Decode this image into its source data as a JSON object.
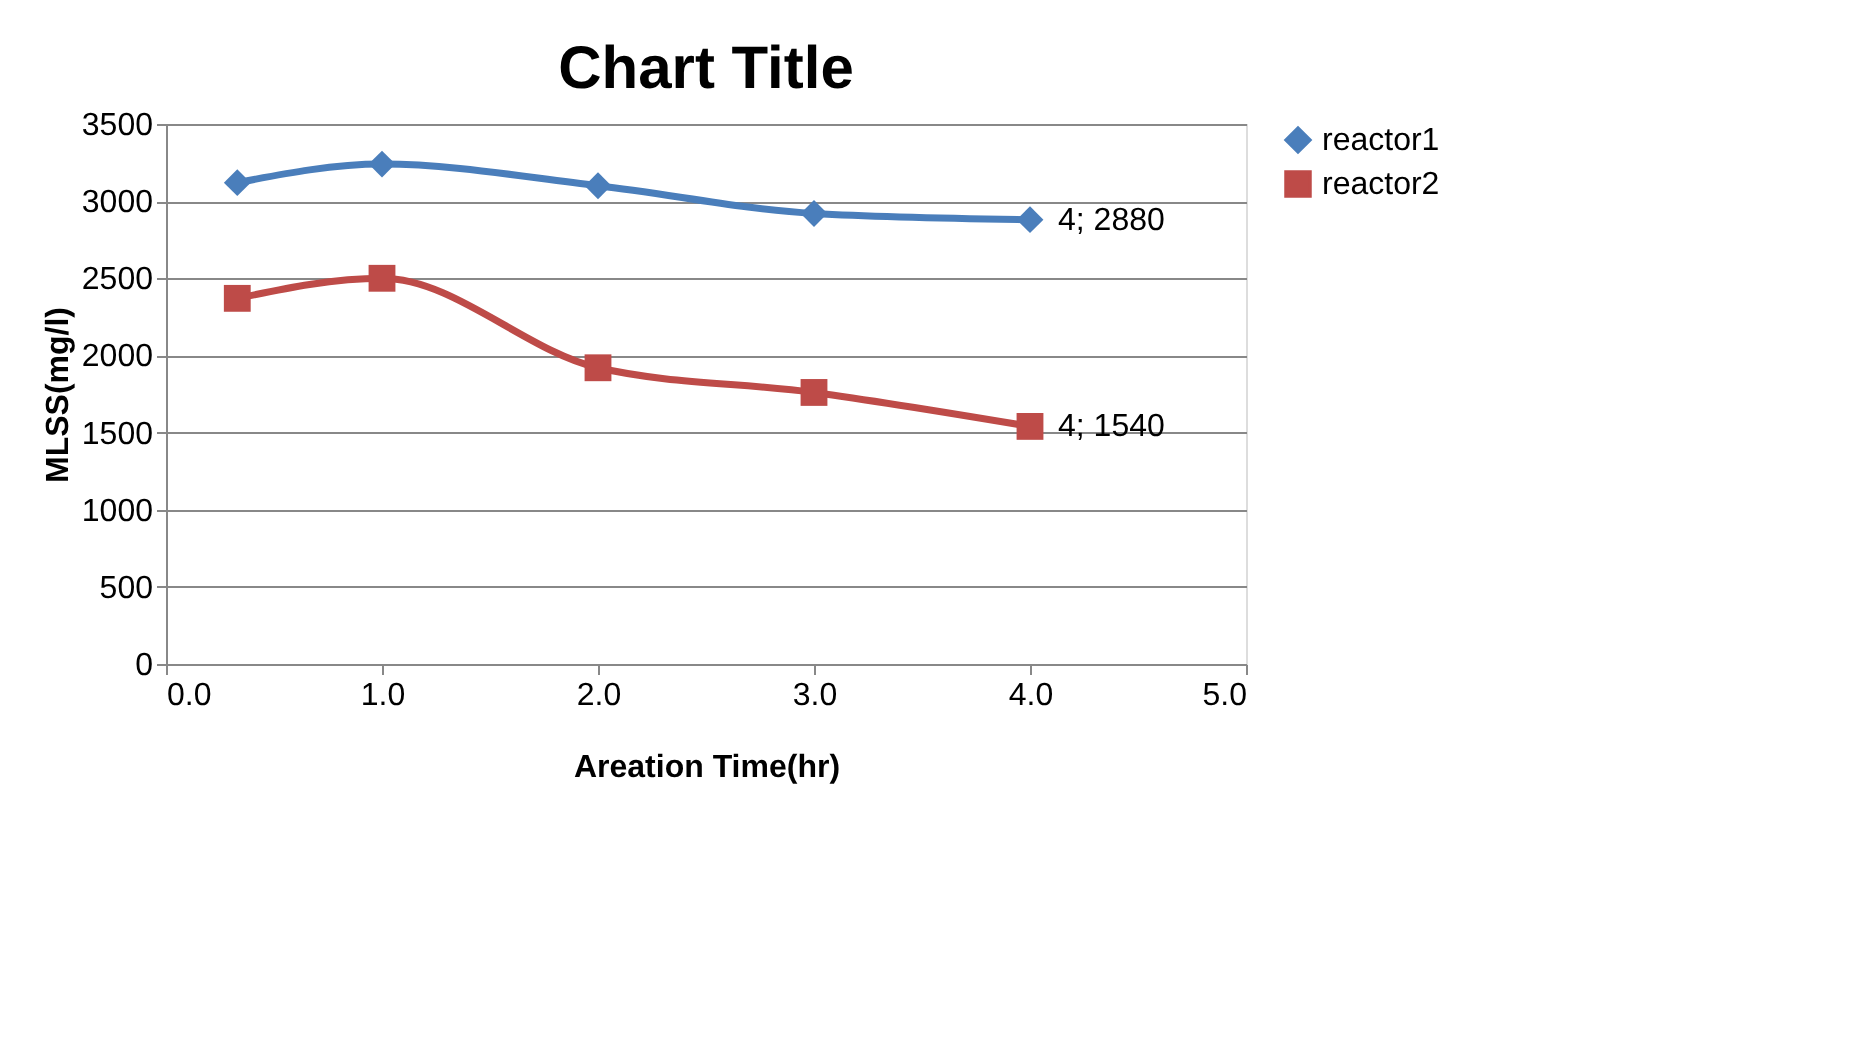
{
  "chart_data": {
    "type": "line",
    "title": "Chart Title",
    "xlabel": "Areation Time(hr)",
    "ylabel": "MLSS(mg/l)",
    "series": [
      {
        "name": "reactor1",
        "color": "#4a7ebb",
        "marker": "diamond",
        "x": [
          0.33,
          1,
          2,
          3,
          4
        ],
        "values": [
          3120,
          3240,
          3100,
          2920,
          2880
        ],
        "value_labels": [
          null,
          null,
          null,
          null,
          "4; 2880"
        ]
      },
      {
        "name": "reactor2",
        "color": "#be4b48",
        "marker": "square",
        "x": [
          0.33,
          1,
          2,
          3,
          4
        ],
        "values": [
          2370,
          2500,
          1920,
          1760,
          1540
        ],
        "value_labels": [
          null,
          null,
          null,
          null,
          "4; 1540"
        ]
      }
    ],
    "xlim": [
      0,
      5
    ],
    "xticks": [
      {
        "value": 0,
        "label": "0.0"
      },
      {
        "value": 1,
        "label": "1.0"
      },
      {
        "value": 2,
        "label": "2.0"
      },
      {
        "value": 3,
        "label": "3.0"
      },
      {
        "value": 4,
        "label": "4.0"
      },
      {
        "value": 5,
        "label": "5.0"
      }
    ],
    "ylim": [
      0,
      3500
    ],
    "yticks": [
      0,
      500,
      1000,
      1500,
      2000,
      2500,
      3000,
      3500
    ],
    "grid": "y",
    "legend": "right"
  }
}
